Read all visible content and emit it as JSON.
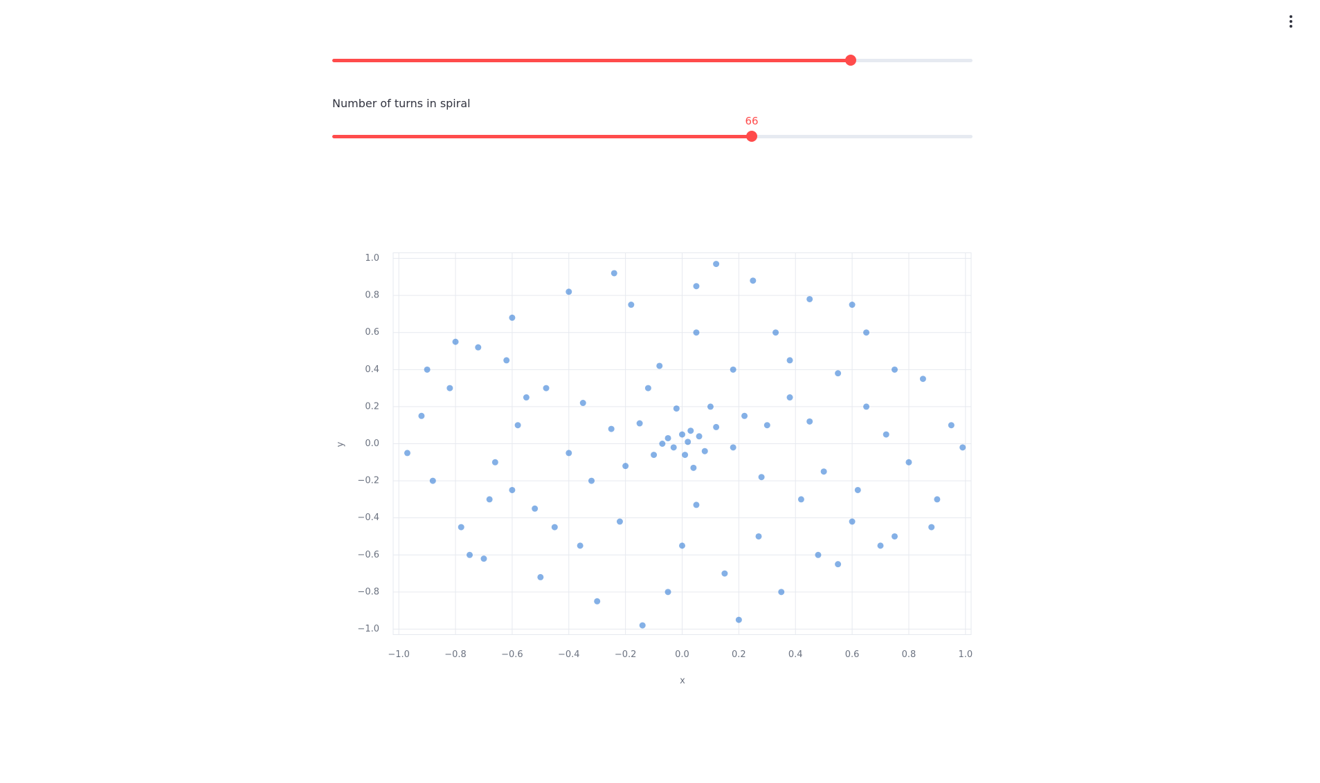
{
  "slider": {
    "label": "Number of turns in spiral",
    "value": 66
  },
  "chart_data": {
    "type": "scatter",
    "x_label": "x",
    "y_label": "y",
    "color": "#1f6fd1",
    "grid": true,
    "xlim": [
      -1.02,
      1.02
    ],
    "ylim": [
      -1.03,
      1.03
    ],
    "xticks": [
      {
        "value": -1,
        "label": "−1.0"
      },
      {
        "value": -0.8,
        "label": "−0.8"
      },
      {
        "value": -0.6,
        "label": "−0.6"
      },
      {
        "value": -0.4,
        "label": "−0.4"
      },
      {
        "value": -0.2,
        "label": "−0.2"
      },
      {
        "value": 0,
        "label": "0.0"
      },
      {
        "value": 0.2,
        "label": "0.2"
      },
      {
        "value": 0.4,
        "label": "0.4"
      },
      {
        "value": 0.6,
        "label": "0.6"
      },
      {
        "value": 0.8,
        "label": "0.8"
      },
      {
        "value": 1,
        "label": "1.0"
      }
    ],
    "yticks": [
      {
        "value": -1,
        "label": "−1.0"
      },
      {
        "value": -0.8,
        "label": "−0.8"
      },
      {
        "value": -0.6,
        "label": "−0.6"
      },
      {
        "value": -0.4,
        "label": "−0.4"
      },
      {
        "value": -0.2,
        "label": "−0.2"
      },
      {
        "value": 0,
        "label": "0.0"
      },
      {
        "value": 0.2,
        "label": "0.2"
      },
      {
        "value": 0.4,
        "label": "0.4"
      },
      {
        "value": 0.6,
        "label": "0.6"
      },
      {
        "value": 0.8,
        "label": "0.8"
      },
      {
        "value": 1,
        "label": "1.0"
      }
    ],
    "x": [
      0.02,
      -0.05,
      0.08,
      -0.1,
      0.12,
      0.04,
      -0.15,
      0.18,
      -0.02,
      0.1,
      -0.2,
      0.22,
      -0.25,
      0.28,
      0.3,
      -0.32,
      0.05,
      -0.35,
      0.38,
      -0.4,
      0.42,
      -0.08,
      0.45,
      -0.48,
      0.5,
      -0.52,
      0.55,
      -0.58,
      0.6,
      -0.62,
      0.65,
      -0.68,
      0.7,
      -0.72,
      0.75,
      -0.78,
      0.8,
      -0.82,
      0.85,
      -0.88,
      0.9,
      -0.92,
      0.95,
      -0.97,
      0.99,
      0.15,
      -0.18,
      0.25,
      -0.3,
      0.35,
      -0.4,
      0.45,
      -0.5,
      0.55,
      -0.6,
      0.65,
      -0.7,
      0.75,
      -0.8,
      0.12,
      -0.14,
      0.2,
      -0.24,
      0.33,
      -0.36,
      0.48,
      -0.55,
      0.62,
      -0.66,
      0.72,
      0.0,
      0.01,
      -0.03,
      0.06,
      -0.07,
      0.03,
      -0.12,
      0.18,
      -0.22,
      0.27,
      0.0,
      0.05,
      -0.45,
      0.38,
      -0.6,
      0.88,
      -0.9,
      0.05,
      -0.05,
      0.6,
      -0.75
    ],
    "values": [
      0.01,
      0.03,
      -0.04,
      -0.06,
      0.09,
      -0.13,
      0.11,
      -0.02,
      0.19,
      0.2,
      -0.12,
      0.15,
      0.08,
      -0.18,
      0.1,
      -0.2,
      -0.33,
      0.22,
      0.25,
      -0.05,
      -0.3,
      0.42,
      0.12,
      0.3,
      -0.15,
      -0.35,
      0.38,
      0.1,
      -0.42,
      0.45,
      0.2,
      -0.3,
      -0.55,
      0.52,
      0.4,
      -0.45,
      -0.1,
      0.3,
      0.35,
      -0.2,
      -0.3,
      0.15,
      0.1,
      -0.05,
      -0.02,
      -0.7,
      0.75,
      0.88,
      -0.85,
      -0.8,
      0.82,
      0.78,
      -0.72,
      -0.65,
      0.68,
      0.6,
      -0.62,
      -0.5,
      0.55,
      0.97,
      -0.98,
      -0.95,
      0.92,
      0.6,
      -0.55,
      -0.6,
      0.25,
      -0.25,
      -0.1,
      0.05,
      0.05,
      -0.06,
      -0.02,
      0.04,
      0.0,
      0.07,
      0.3,
      0.4,
      -0.42,
      -0.5,
      -0.55,
      0.6,
      -0.45,
      0.45,
      -0.25,
      -0.45,
      0.4,
      0.85,
      -0.8,
      0.75,
      -0.6
    ]
  }
}
